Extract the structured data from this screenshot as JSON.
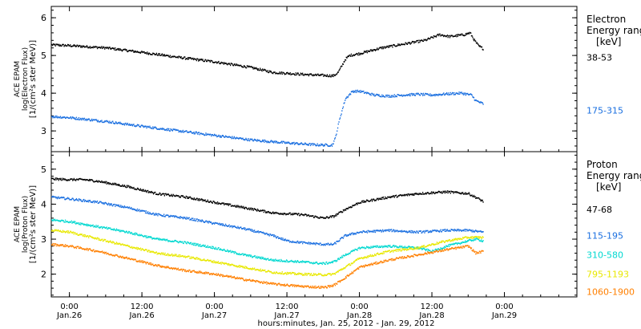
{
  "chart_data": {
    "type": "scatter",
    "xlabel": "hours:minutes, Jan. 25, 2012 - Jan. 29, 2012",
    "xlim": [
      -0.125,
      3.5
    ],
    "x_unit": "days since Jan. 26, 2012 0:00 UT",
    "x_ticks": [
      {
        "x": 0.0,
        "time": "0:00",
        "date": "Jan.26"
      },
      {
        "x": 0.5,
        "time": "12:00",
        "date": "Jan.26"
      },
      {
        "x": 1.0,
        "time": "0:00",
        "date": "Jan.27"
      },
      {
        "x": 1.5,
        "time": "12:00",
        "date": "Jan.27"
      },
      {
        "x": 2.0,
        "time": "0:00",
        "date": "Jan.28"
      },
      {
        "x": 2.5,
        "time": "12:00",
        "date": "Jan.28"
      },
      {
        "x": 3.0,
        "time": "0:00",
        "date": "Jan.29"
      }
    ],
    "panels": [
      {
        "id": "electron",
        "ylabel": [
          "ACE EPAM",
          "log(Electron Flux)",
          "[1/(cm²s ster MeV)]"
        ],
        "ylim": [
          2.45,
          6.3
        ],
        "yticks": [
          3,
          4,
          5,
          6
        ],
        "legend_title": [
          "Electron",
          "Energy ranges",
          "[keV]"
        ],
        "series": [
          {
            "name": "38-53",
            "color": "#000000",
            "label_y": 4.95,
            "points": [
              [
                -0.125,
                5.28
              ],
              [
                0.0,
                5.26
              ],
              [
                0.25,
                5.2
              ],
              [
                0.5,
                5.08
              ],
              [
                0.75,
                4.95
              ],
              [
                1.0,
                4.83
              ],
              [
                1.25,
                4.68
              ],
              [
                1.4,
                4.55
              ],
              [
                1.6,
                4.5
              ],
              [
                1.75,
                4.47
              ],
              [
                1.82,
                4.46
              ],
              [
                1.85,
                4.55
              ],
              [
                1.88,
                4.75
              ],
              [
                1.9,
                4.9
              ],
              [
                1.93,
                5.0
              ],
              [
                2.0,
                5.05
              ],
              [
                2.15,
                5.2
              ],
              [
                2.3,
                5.3
              ],
              [
                2.45,
                5.4
              ],
              [
                2.55,
                5.55
              ],
              [
                2.62,
                5.5
              ],
              [
                2.72,
                5.55
              ],
              [
                2.76,
                5.6
              ],
              [
                2.79,
                5.4
              ],
              [
                2.82,
                5.25
              ],
              [
                2.85,
                5.18
              ]
            ]
          },
          {
            "name": "175-315",
            "color": "#1a6fe0",
            "label_y": 3.55,
            "points": [
              [
                -0.125,
                3.38
              ],
              [
                0.0,
                3.35
              ],
              [
                0.25,
                3.25
              ],
              [
                0.5,
                3.12
              ],
              [
                0.75,
                3.0
              ],
              [
                1.0,
                2.88
              ],
              [
                1.25,
                2.76
              ],
              [
                1.5,
                2.68
              ],
              [
                1.7,
                2.63
              ],
              [
                1.81,
                2.62
              ],
              [
                1.83,
                2.8
              ],
              [
                1.86,
                3.3
              ],
              [
                1.9,
                3.85
              ],
              [
                1.95,
                4.05
              ],
              [
                2.0,
                4.05
              ],
              [
                2.1,
                3.95
              ],
              [
                2.2,
                3.92
              ],
              [
                2.3,
                3.95
              ],
              [
                2.4,
                3.97
              ],
              [
                2.5,
                3.95
              ],
              [
                2.6,
                3.98
              ],
              [
                2.7,
                4.0
              ],
              [
                2.77,
                3.95
              ],
              [
                2.8,
                3.8
              ],
              [
                2.85,
                3.72
              ]
            ]
          }
        ]
      },
      {
        "id": "proton",
        "ylabel": [
          "ACE EPAM",
          "log(Proton Flux)",
          "[1/(cm²s ster MeV)]"
        ],
        "ylim": [
          1.35,
          5.5
        ],
        "yticks": [
          2,
          3,
          4,
          5
        ],
        "legend_title": [
          "Proton",
          "Energy ranges",
          "[keV]"
        ],
        "series": [
          {
            "name": "47-68",
            "color": "#000000",
            "label_y": 3.85,
            "points": [
              [
                -0.125,
                4.72
              ],
              [
                0.0,
                4.7
              ],
              [
                0.1,
                4.7
              ],
              [
                0.2,
                4.65
              ],
              [
                0.4,
                4.5
              ],
              [
                0.6,
                4.3
              ],
              [
                0.8,
                4.2
              ],
              [
                1.0,
                4.05
              ],
              [
                1.2,
                3.9
              ],
              [
                1.4,
                3.75
              ],
              [
                1.6,
                3.7
              ],
              [
                1.75,
                3.6
              ],
              [
                1.82,
                3.65
              ],
              [
                1.9,
                3.85
              ],
              [
                2.0,
                4.05
              ],
              [
                2.2,
                4.2
              ],
              [
                2.4,
                4.3
              ],
              [
                2.6,
                4.35
              ],
              [
                2.75,
                4.3
              ],
              [
                2.82,
                4.15
              ],
              [
                2.85,
                4.08
              ]
            ]
          },
          {
            "name": "115-195",
            "color": "#1a6fe0",
            "label_y": 3.1,
            "points": [
              [
                -0.125,
                4.2
              ],
              [
                0.0,
                4.15
              ],
              [
                0.2,
                4.05
              ],
              [
                0.4,
                3.9
              ],
              [
                0.6,
                3.7
              ],
              [
                0.8,
                3.6
              ],
              [
                1.0,
                3.45
              ],
              [
                1.2,
                3.3
              ],
              [
                1.4,
                3.1
              ],
              [
                1.5,
                2.95
              ],
              [
                1.6,
                2.9
              ],
              [
                1.75,
                2.85
              ],
              [
                1.82,
                2.85
              ],
              [
                1.9,
                3.1
              ],
              [
                2.0,
                3.2
              ],
              [
                2.2,
                3.25
              ],
              [
                2.4,
                3.2
              ],
              [
                2.6,
                3.25
              ],
              [
                2.75,
                3.25
              ],
              [
                2.85,
                3.2
              ]
            ]
          },
          {
            "name": "310-580",
            "color": "#00d8d0",
            "label_y": 2.55,
            "points": [
              [
                -0.125,
                3.55
              ],
              [
                0.0,
                3.5
              ],
              [
                0.2,
                3.35
              ],
              [
                0.4,
                3.2
              ],
              [
                0.6,
                3.0
              ],
              [
                0.8,
                2.9
              ],
              [
                1.0,
                2.75
              ],
              [
                1.2,
                2.55
              ],
              [
                1.4,
                2.4
              ],
              [
                1.6,
                2.35
              ],
              [
                1.75,
                2.3
              ],
              [
                1.82,
                2.35
              ],
              [
                1.9,
                2.55
              ],
              [
                2.0,
                2.75
              ],
              [
                2.2,
                2.8
              ],
              [
                2.4,
                2.75
              ],
              [
                2.5,
                2.65
              ],
              [
                2.6,
                2.8
              ],
              [
                2.7,
                2.9
              ],
              [
                2.8,
                3.0
              ],
              [
                2.85,
                2.95
              ]
            ]
          },
          {
            "name": "795-1193",
            "color": "#e8e800",
            "label_y": 2.0,
            "points": [
              [
                -0.125,
                3.25
              ],
              [
                0.0,
                3.2
              ],
              [
                0.2,
                3.0
              ],
              [
                0.4,
                2.8
              ],
              [
                0.6,
                2.6
              ],
              [
                0.8,
                2.5
              ],
              [
                1.0,
                2.35
              ],
              [
                1.2,
                2.2
              ],
              [
                1.4,
                2.05
              ],
              [
                1.6,
                2.0
              ],
              [
                1.75,
                1.98
              ],
              [
                1.82,
                2.0
              ],
              [
                1.9,
                2.2
              ],
              [
                2.0,
                2.45
              ],
              [
                2.2,
                2.65
              ],
              [
                2.4,
                2.75
              ],
              [
                2.6,
                2.95
              ],
              [
                2.75,
                3.05
              ],
              [
                2.85,
                3.05
              ]
            ]
          },
          {
            "name": "1060-1900",
            "color": "#ff7f00",
            "label_y": 1.5,
            "points": [
              [
                -0.125,
                2.85
              ],
              [
                0.0,
                2.8
              ],
              [
                0.2,
                2.65
              ],
              [
                0.4,
                2.45
              ],
              [
                0.6,
                2.25
              ],
              [
                0.8,
                2.1
              ],
              [
                1.0,
                2.0
              ],
              [
                1.2,
                1.85
              ],
              [
                1.4,
                1.72
              ],
              [
                1.6,
                1.65
              ],
              [
                1.75,
                1.62
              ],
              [
                1.82,
                1.68
              ],
              [
                1.9,
                1.9
              ],
              [
                2.0,
                2.2
              ],
              [
                2.2,
                2.4
              ],
              [
                2.4,
                2.55
              ],
              [
                2.6,
                2.7
              ],
              [
                2.75,
                2.8
              ],
              [
                2.8,
                2.6
              ],
              [
                2.85,
                2.65
              ]
            ]
          }
        ]
      }
    ]
  }
}
